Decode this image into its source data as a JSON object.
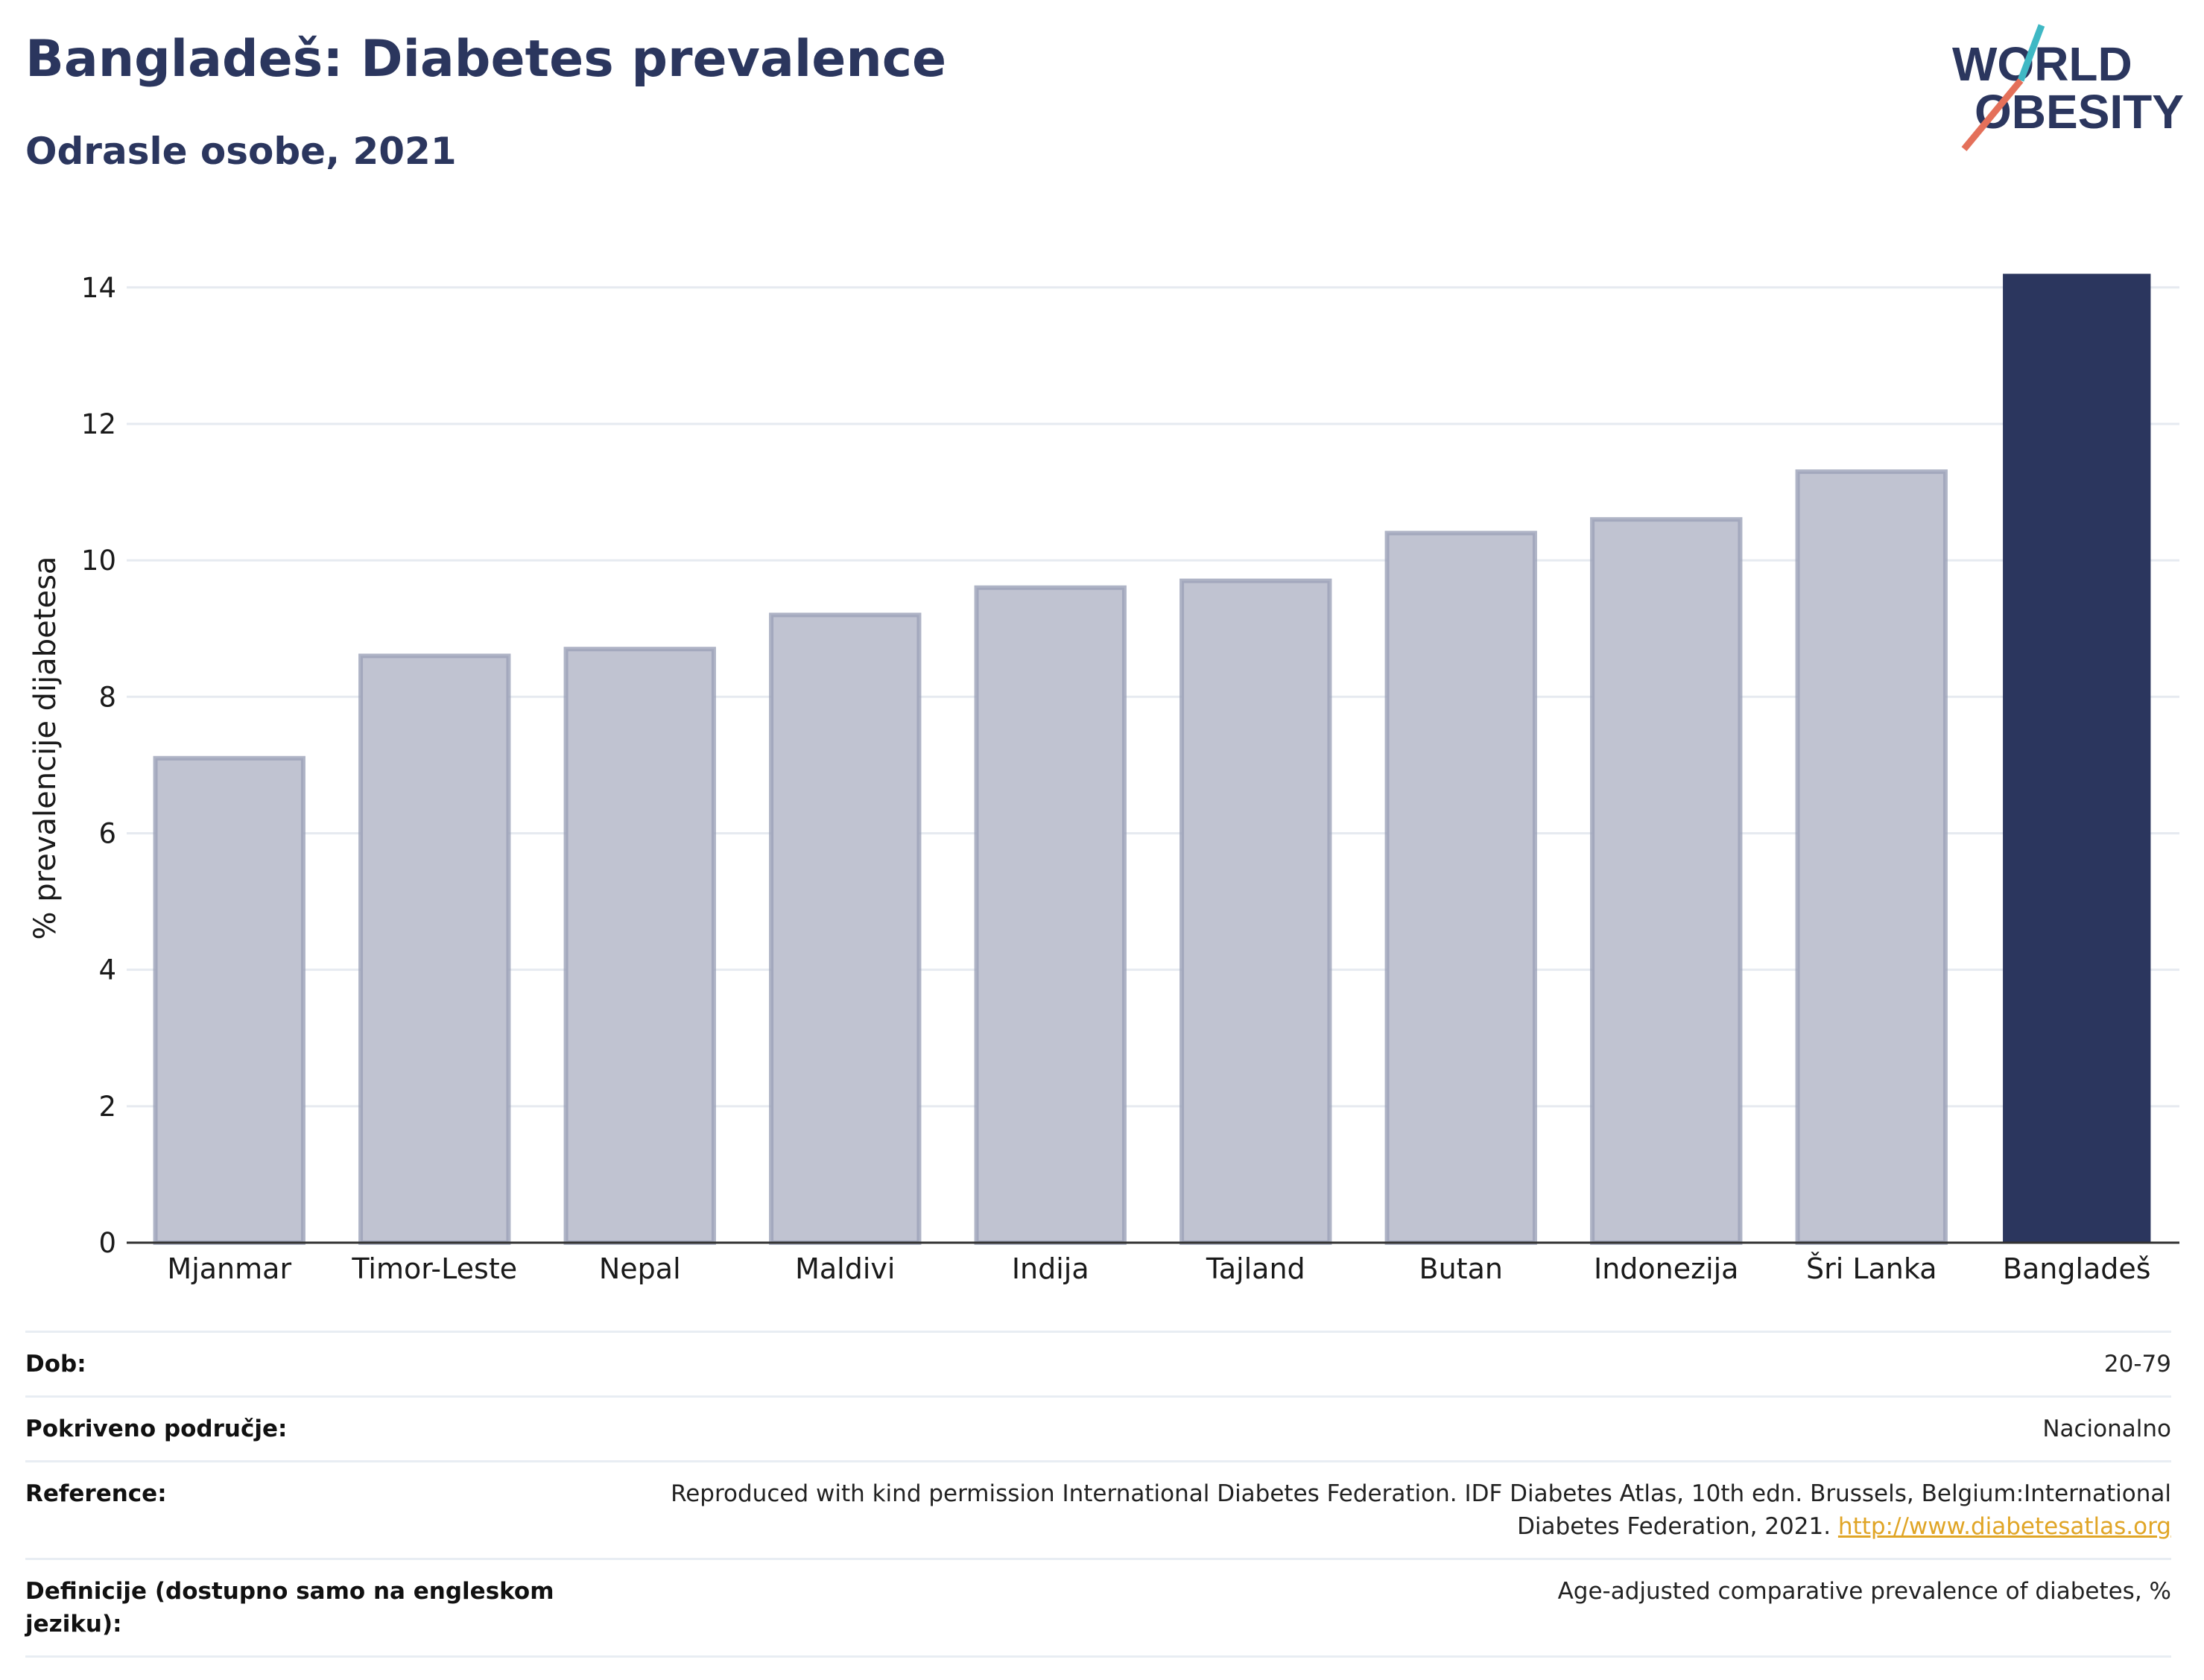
{
  "header": {
    "title": "Bangladeš: Diabetes prevalence",
    "subtitle": "Odrasle osobe, 2021"
  },
  "logo": {
    "line1": "WORLD",
    "line2": "OBESITY"
  },
  "chart_data": {
    "type": "bar",
    "categories": [
      "Mjanmar",
      "Timor-Leste",
      "Nepal",
      "Maldivi",
      "Indija",
      "Tajland",
      "Butan",
      "Indonezija",
      "Šri Lanka",
      "Bangladeš"
    ],
    "values": [
      7.1,
      8.6,
      8.7,
      9.2,
      9.6,
      9.7,
      10.4,
      10.6,
      11.3,
      14.2
    ],
    "ylabel": "% prevalencije dijabetesa",
    "ylim": [
      0,
      14.5
    ],
    "yticks": [
      0,
      2,
      4,
      6,
      8,
      10,
      12,
      14
    ],
    "grid": true,
    "highlight": "Bangladeš",
    "colors": {
      "bar": "#c0c3d1",
      "bar_border": "#9ba1b8",
      "highlight": "#2b365e",
      "grid": "#e6eaf0"
    }
  },
  "footer": {
    "rows": [
      {
        "label": "Dob:",
        "value": "20-79"
      },
      {
        "label": "Pokriveno područje:",
        "value": "Nacionalno"
      },
      {
        "label": "Reference:",
        "value": "Reproduced with kind permission International Diabetes Federation.  IDF Diabetes Atlas, 10th edn. Brussels, Belgium:International Diabetes Federation, 2021.",
        "link": "http://www.diabetesatlas.org"
      },
      {
        "label": "Definicije (dostupno samo na engleskom jeziku):",
        "value": "Age-adjusted comparative prevalence of diabetes, %"
      }
    ]
  }
}
